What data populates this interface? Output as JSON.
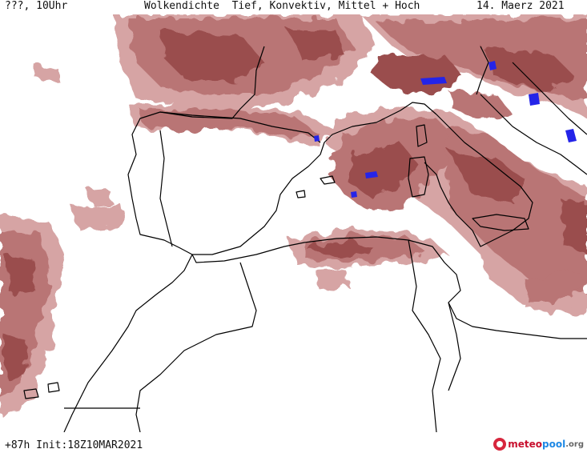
{
  "header": {
    "left": "???, 10Uhr",
    "title": "Wolkendichte  Tief, Konvektiv, Mittel + Hoch",
    "date": "14. Maerz 2021"
  },
  "footer": {
    "run": "+87h Init:18Z10MAR2021",
    "logo": {
      "a": "meteo",
      "b": "pool",
      "c": ".org"
    }
  },
  "colors": {
    "cloud_light": "#d6a4a4",
    "cloud_mid": "#b97474",
    "cloud_dark": "#9a4d4d",
    "convective": "#2424e8",
    "coast": "#000000",
    "logo_a": "#c8102e",
    "logo_b": "#1e88e5"
  }
}
